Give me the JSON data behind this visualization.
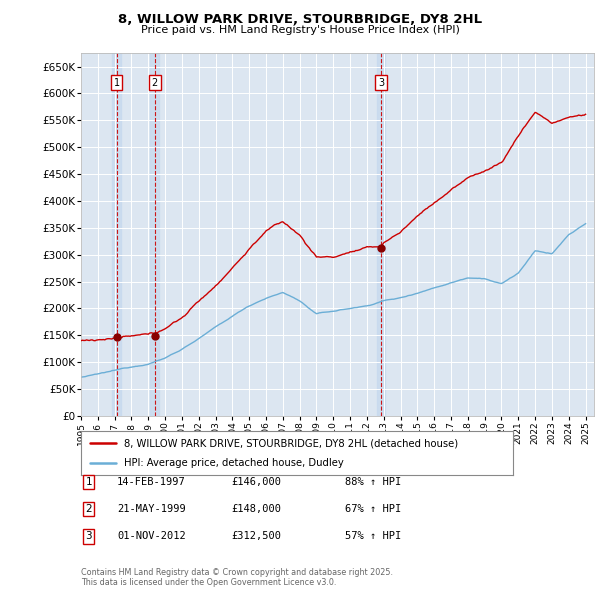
{
  "title": "8, WILLOW PARK DRIVE, STOURBRIDGE, DY8 2HL",
  "subtitle": "Price paid vs. HM Land Registry's House Price Index (HPI)",
  "background_color": "#ffffff",
  "plot_bg_color": "#dce6f1",
  "red_line_label": "8, WILLOW PARK DRIVE, STOURBRIDGE, DY8 2HL (detached house)",
  "blue_line_label": "HPI: Average price, detached house, Dudley",
  "sale_points": [
    {
      "num": 1,
      "date_str": "14-FEB-1997",
      "price": 146000,
      "pct": "88%",
      "year": 1997.12
    },
    {
      "num": 2,
      "date_str": "21-MAY-1999",
      "price": 148000,
      "pct": "67%",
      "year": 1999.38
    },
    {
      "num": 3,
      "date_str": "01-NOV-2012",
      "price": 312500,
      "pct": "57%",
      "year": 2012.83
    }
  ],
  "footer_line1": "Contains HM Land Registry data © Crown copyright and database right 2025.",
  "footer_line2": "This data is licensed under the Open Government Licence v3.0.",
  "ylim": [
    0,
    675000
  ],
  "yticks": [
    0,
    50000,
    100000,
    150000,
    200000,
    250000,
    300000,
    350000,
    400000,
    450000,
    500000,
    550000,
    600000,
    650000
  ],
  "xlim": [
    1995.0,
    2025.5
  ],
  "xticks": [
    1995,
    1996,
    1997,
    1998,
    1999,
    2000,
    2001,
    2002,
    2003,
    2004,
    2005,
    2006,
    2007,
    2008,
    2009,
    2010,
    2011,
    2012,
    2013,
    2014,
    2015,
    2016,
    2017,
    2018,
    2019,
    2020,
    2021,
    2022,
    2023,
    2024,
    2025
  ],
  "hpi_anchors_x": [
    1995,
    1996,
    1997,
    1998,
    1999,
    2000,
    2001,
    2002,
    2003,
    2004,
    2005,
    2006,
    2007,
    2008,
    2009,
    2010,
    2011,
    2012,
    2013,
    2014,
    2015,
    2016,
    2017,
    2018,
    2019,
    2020,
    2021,
    2022,
    2023,
    2024,
    2025
  ],
  "hpi_anchors_y": [
    72000,
    77000,
    83000,
    90000,
    97000,
    108000,
    125000,
    145000,
    165000,
    185000,
    205000,
    220000,
    230000,
    215000,
    190000,
    195000,
    200000,
    205000,
    215000,
    220000,
    230000,
    240000,
    250000,
    260000,
    260000,
    250000,
    270000,
    310000,
    305000,
    340000,
    360000
  ],
  "red_anchors_x": [
    1995,
    1997.12,
    1999.38,
    2001,
    2003,
    2005,
    2006,
    2007,
    2008,
    2009,
    2010,
    2011,
    2012,
    2012.83,
    2013,
    2014,
    2015,
    2016,
    2017,
    2018,
    2019,
    2020,
    2021,
    2022,
    2023,
    2024,
    2025
  ],
  "red_anchors_y": [
    140000,
    146000,
    148000,
    180000,
    240000,
    310000,
    345000,
    360000,
    335000,
    295000,
    295000,
    305000,
    310000,
    312500,
    320000,
    340000,
    370000,
    395000,
    420000,
    440000,
    455000,
    470000,
    520000,
    565000,
    545000,
    555000,
    560000
  ]
}
